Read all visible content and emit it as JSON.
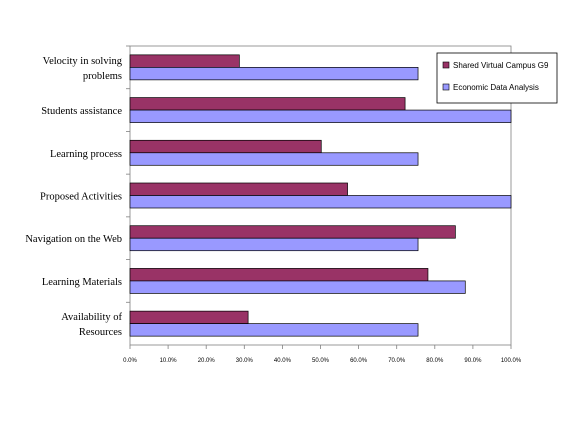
{
  "chart_data": {
    "type": "bar",
    "orientation": "horizontal",
    "categories": [
      [
        "Velocity in solving",
        "problems"
      ],
      [
        "Students assistance"
      ],
      [
        "Learning process"
      ],
      [
        "Proposed Activities"
      ],
      [
        "Navigation on the Web"
      ],
      [
        "Learning Materials"
      ],
      [
        "Availability of",
        "Resources"
      ]
    ],
    "series": [
      {
        "name": "Shared Virtual Campus G9",
        "color": "#993366",
        "values": [
          28.7,
          72.2,
          50.2,
          57.1,
          85.4,
          78.2,
          31.0
        ]
      },
      {
        "name": "Economic Data Analysis",
        "color": "#9999ff",
        "values": [
          75.6,
          100.0,
          75.6,
          100.0,
          75.6,
          88.0,
          75.6
        ]
      }
    ],
    "x_ticks": [
      "0.0%",
      "10.0%",
      "20.0%",
      "30.0%",
      "40.0%",
      "50.0%",
      "60.0%",
      "70.0%",
      "80.0%",
      "90.0%",
      "100.0%"
    ],
    "xlim": [
      0,
      100
    ],
    "grid": false,
    "legend_position": "top-right",
    "title": "",
    "xlabel": "",
    "ylabel": ""
  }
}
